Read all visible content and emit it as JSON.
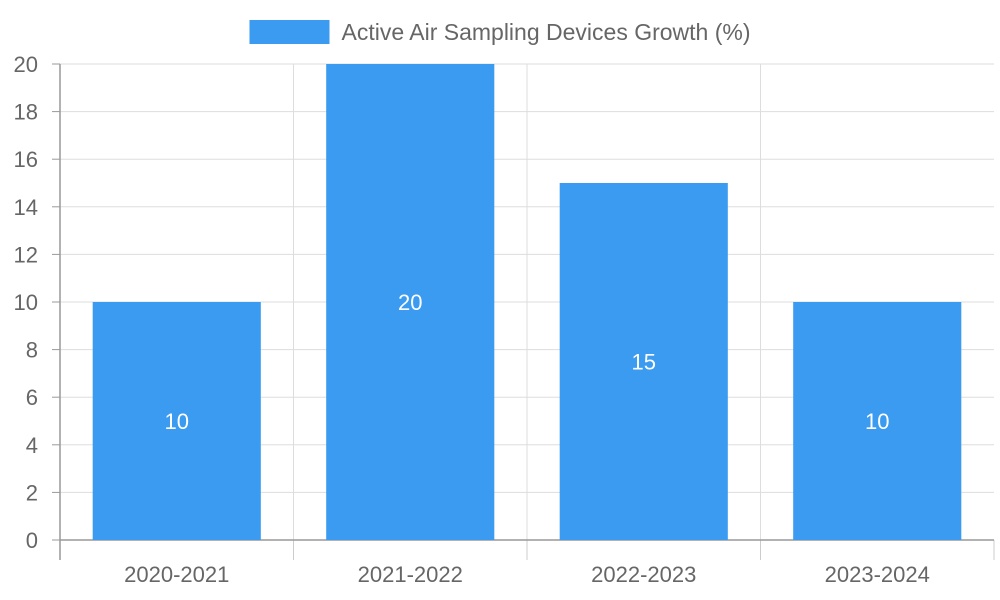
{
  "chart_data": {
    "type": "bar",
    "title": "",
    "xlabel": "",
    "ylabel": "",
    "categories": [
      "2020-2021",
      "2021-2022",
      "2022-2023",
      "2023-2024"
    ],
    "series": [
      {
        "name": "Active Air Sampling Devices Growth (%)",
        "values": [
          10,
          20,
          15,
          10
        ],
        "color": "#3a9bf0"
      }
    ],
    "data_labels": [
      "10",
      "20",
      "15",
      "10"
    ],
    "ylim": [
      0,
      20
    ],
    "ytick_step": 2,
    "y_tick_labels": [
      "0",
      "2",
      "4",
      "6",
      "8",
      "10",
      "12",
      "14",
      "16",
      "18",
      "20"
    ],
    "grid": true,
    "legend_position": "top-center"
  }
}
